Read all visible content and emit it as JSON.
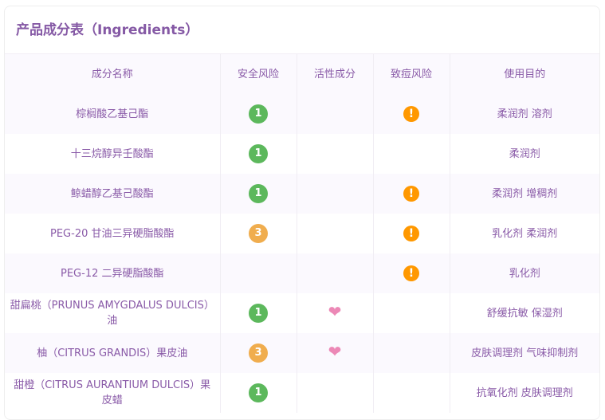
{
  "title": "产品成分表（Ingredients）",
  "headers": [
    "成分名称",
    "安全风险",
    "活性成分",
    "致痘风险",
    "使用目的"
  ],
  "colors": {
    "risk_1": "#5cb85c",
    "risk_3": "#f0ad4e",
    "acne_warning": "#ff9800",
    "active_heart": "#ec88b6"
  },
  "rows": [
    {
      "name": "棕榈酸乙基己酯",
      "risk": "1",
      "active": false,
      "acne": true,
      "purpose": "柔润剂 溶剂"
    },
    {
      "name": "十三烷醇异壬酸酯",
      "risk": "1",
      "active": false,
      "acne": false,
      "purpose": "柔润剂"
    },
    {
      "name": "鲸蜡醇乙基己酸酯",
      "risk": "1",
      "active": false,
      "acne": true,
      "purpose": "柔润剂 增稠剂"
    },
    {
      "name": "PEG-20 甘油三异硬脂酸酯",
      "risk": "3",
      "active": false,
      "acne": true,
      "purpose": "乳化剂 柔润剂"
    },
    {
      "name": "PEG-12 二异硬脂酸酯",
      "risk": "",
      "active": false,
      "acne": true,
      "purpose": "乳化剂"
    },
    {
      "name": "甜扁桃（PRUNUS AMYGDALUS DULCIS）油",
      "risk": "1",
      "active": true,
      "acne": false,
      "purpose": "舒缓抗敏 保湿剂"
    },
    {
      "name": "柚（CITRUS GRANDIS）果皮油",
      "risk": "3",
      "active": true,
      "acne": false,
      "purpose": "皮肤调理剂 气味抑制剂"
    },
    {
      "name": "甜橙（CITRUS AURANTIUM DULCIS）果皮蜡",
      "risk": "1",
      "active": false,
      "acne": false,
      "purpose": "抗氧化剂 皮肤调理剂"
    }
  ]
}
